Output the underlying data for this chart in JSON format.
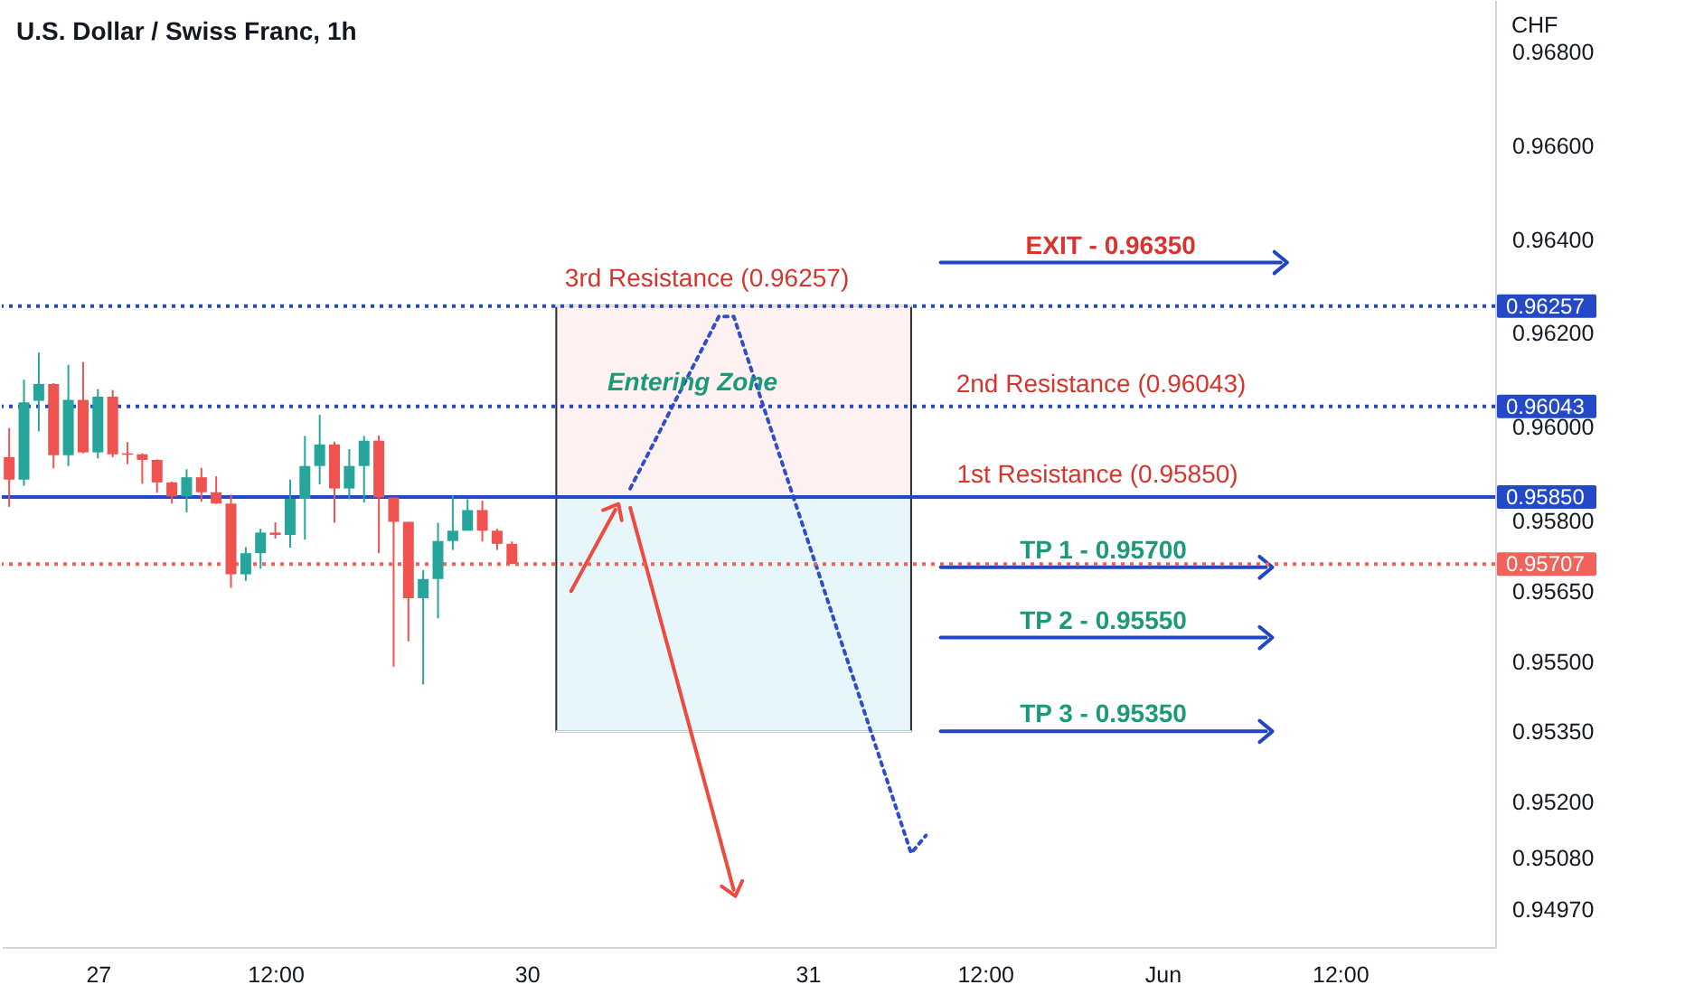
{
  "chart_data": {
    "type": "candlestick",
    "title": "U.S. Dollar / Swiss Franc, 1h",
    "ylabel": "CHF",
    "categories": [
      null,
      null,
      null,
      null,
      null,
      null,
      "27",
      null,
      null,
      null,
      null,
      null,
      null,
      null,
      null,
      null,
      null,
      null,
      "12:00",
      null,
      null,
      null,
      null,
      null,
      null,
      null,
      null,
      null,
      null,
      null,
      null,
      null,
      null,
      null,
      null,
      "30",
      null,
      null,
      null,
      null,
      null,
      null,
      null,
      null,
      null,
      null,
      null,
      null,
      null,
      null,
      null,
      null,
      null,
      null,
      "31",
      null,
      null,
      null,
      null,
      null,
      null,
      null,
      null,
      null,
      null,
      null,
      "12:00",
      null,
      null,
      null,
      null,
      null,
      null,
      null,
      null,
      null,
      null,
      null,
      "Jun",
      null,
      null,
      null,
      null,
      null,
      null,
      null,
      null,
      null,
      null,
      null,
      "12:00",
      null,
      null,
      null,
      null,
      null,
      null,
      null,
      null,
      null,
      null
    ],
    "ohlc": [
      [
        0.95935,
        0.95997,
        0.95829,
        0.95887
      ],
      [
        0.95887,
        0.961,
        0.95874,
        0.96052
      ],
      [
        0.96055,
        0.96158,
        0.9599,
        0.96091
      ],
      [
        0.96091,
        0.96093,
        0.95911,
        0.95939
      ],
      [
        0.95939,
        0.96132,
        0.95916,
        0.96057
      ],
      [
        0.96057,
        0.96138,
        0.95943,
        0.95945
      ],
      [
        0.95945,
        0.9608,
        0.95932,
        0.96064
      ],
      [
        0.96064,
        0.96078,
        0.95935,
        0.95941
      ],
      [
        0.95943,
        0.95967,
        0.9592,
        0.9594
      ],
      [
        0.95941,
        0.95943,
        0.95878,
        0.95929
      ],
      [
        0.95929,
        0.9593,
        0.95859,
        0.95881
      ],
      [
        0.95881,
        0.95883,
        0.95836,
        0.95851
      ],
      [
        0.95851,
        0.95909,
        0.95817,
        0.95892
      ],
      [
        0.95892,
        0.95912,
        0.9584,
        0.9586
      ],
      [
        0.9586,
        0.95894,
        0.95835,
        0.95836
      ],
      [
        0.95836,
        0.95855,
        0.95656,
        0.95685
      ],
      [
        0.95685,
        0.95743,
        0.95671,
        0.9573
      ],
      [
        0.9573,
        0.95782,
        0.95697,
        0.95774
      ],
      [
        0.95774,
        0.95796,
        0.95761,
        0.95769
      ],
      [
        0.95769,
        0.95887,
        0.95742,
        0.95846
      ],
      [
        0.95846,
        0.9598,
        0.95759,
        0.95916
      ],
      [
        0.95916,
        0.96025,
        0.95877,
        0.95962
      ],
      [
        0.95962,
        0.95968,
        0.95795,
        0.95868
      ],
      [
        0.95868,
        0.95952,
        0.95845,
        0.95916
      ],
      [
        0.95916,
        0.9598,
        0.95838,
        0.9597
      ],
      [
        0.9597,
        0.95981,
        0.9573,
        0.95849
      ],
      [
        0.95849,
        0.95849,
        0.95488,
        0.95797
      ],
      [
        0.95797,
        0.95797,
        0.95542,
        0.95634
      ],
      [
        0.95634,
        0.95694,
        0.9545,
        0.95675
      ],
      [
        0.95675,
        0.95795,
        0.95591,
        0.95756
      ],
      [
        0.95756,
        0.95854,
        0.95737,
        0.95778
      ],
      [
        0.95778,
        0.95845,
        0.95778,
        0.95822
      ],
      [
        0.95822,
        0.95842,
        0.95755,
        0.95778
      ],
      [
        0.95778,
        0.95782,
        0.95737,
        0.9575
      ],
      [
        0.9575,
        0.95755,
        0.95707,
        0.95707
      ],
      null,
      null,
      null,
      null,
      null,
      null,
      null,
      null,
      null,
      null,
      null,
      null,
      null,
      null,
      null,
      null,
      null,
      null,
      null,
      null,
      null,
      null,
      null,
      null,
      null,
      null,
      null,
      null,
      null,
      null,
      null,
      null,
      null,
      null,
      null,
      null,
      null,
      null,
      null,
      null,
      null,
      null,
      null,
      null,
      null,
      null,
      null,
      null,
      null,
      null,
      null,
      null,
      null,
      null,
      null,
      null,
      null,
      null,
      null,
      null,
      null,
      null,
      null,
      null,
      null,
      null
    ],
    "colors": [
      "#ef5350",
      "#26a69a",
      "#26a69a",
      "#ef5350",
      "#26a69a",
      "#ef5350",
      "#26a69a",
      "#ef5350",
      "#ef5350",
      "#ef5350",
      "#ef5350",
      "#ef5350",
      "#26a69a",
      "#ef5350",
      "#ef5350",
      "#ef5350",
      "#26a69a",
      "#26a69a",
      "#ef5350",
      "#26a69a",
      "#26a69a",
      "#26a69a",
      "#ef5350",
      "#26a69a",
      "#26a69a",
      "#ef5350",
      "#ef5350",
      "#ef5350",
      "#26a69a",
      "#26a69a",
      "#26a69a",
      "#26a69a",
      "#ef5350",
      "#ef5350",
      "#ef5350",
      null,
      null,
      null,
      null,
      null,
      null,
      null,
      null,
      null,
      null,
      null,
      null,
      null,
      null,
      null,
      null,
      null,
      null,
      null,
      null,
      null,
      null,
      null,
      null,
      null,
      null,
      null,
      null,
      null,
      null,
      null,
      null,
      null,
      null,
      null,
      null,
      null,
      null,
      null,
      null,
      null,
      null,
      null,
      null,
      null,
      null,
      null,
      null,
      null,
      null,
      null,
      null,
      null,
      null,
      null,
      null,
      null,
      null,
      null,
      null,
      null,
      null,
      null,
      null,
      null,
      null
    ],
    "ylim": [
      0.9489,
      0.9691
    ],
    "yticks": [
      {
        "value": 0.968,
        "label": "0.96800"
      },
      {
        "value": 0.966,
        "label": "0.96600"
      },
      {
        "value": 0.964,
        "label": "0.96400"
      },
      {
        "value": 0.962,
        "label": "0.96200"
      },
      {
        "value": 0.96,
        "label": "0.96000"
      },
      {
        "value": 0.958,
        "label": "0.95800"
      },
      {
        "value": 0.9565,
        "label": "0.95650"
      },
      {
        "value": 0.955,
        "label": "0.95500"
      },
      {
        "value": 0.9535,
        "label": "0.95350"
      },
      {
        "value": 0.952,
        "label": "0.95200"
      },
      {
        "value": 0.9508,
        "label": "0.95080"
      },
      {
        "value": 0.9497,
        "label": "0.94970"
      }
    ],
    "ref_lines": [
      {
        "axis": "y",
        "value": 0.96257,
        "label": "0.96257",
        "color": "#2449c8",
        "line_style": "dotted"
      },
      {
        "axis": "y",
        "value": 0.96043,
        "label": "0.96043",
        "color": "#2449c8",
        "line_style": "dotted"
      },
      {
        "axis": "y",
        "value": 0.9585,
        "label": "0.95850",
        "color": "#2449c8",
        "line_style": "solid"
      },
      {
        "axis": "y",
        "value": 0.95707,
        "label": "0.95707",
        "color": "#f0625a",
        "line_style": "dotted"
      }
    ],
    "series": [
      {
        "type": "line",
        "color": "#fdf1f1",
        "values": [
          null,
          null,
          null,
          null,
          null,
          null,
          null,
          null,
          null,
          null,
          null,
          null,
          null,
          null,
          null,
          null,
          null,
          null,
          null,
          null,
          null,
          null,
          null,
          null,
          null,
          null,
          null,
          null,
          null,
          null,
          null,
          null,
          null,
          null,
          null,
          null,
          null,
          0.96257,
          0.96257,
          0.96257,
          0.96257,
          0.96257,
          0.96257,
          0.96257,
          0.96257,
          0.96257,
          0.96257,
          0.96257,
          0.96257,
          0.96257,
          0.96257,
          0.96257,
          0.96257,
          0.96257,
          0.96257,
          0.96257,
          0.96257,
          0.96257,
          0.96257,
          0.96257,
          0.96257,
          0.96257,
          null,
          null,
          null,
          null,
          null,
          null,
          null,
          null,
          null,
          null,
          null,
          null,
          null,
          null,
          null,
          null,
          null,
          null,
          null,
          null,
          null,
          null,
          null,
          null,
          null,
          null,
          null,
          null,
          null,
          null,
          null,
          null,
          null,
          null,
          null,
          null,
          null,
          null,
          null
        ],
        "upper": [
          null,
          null,
          null,
          null,
          null,
          null,
          null,
          null,
          null,
          null,
          null,
          null,
          null,
          null,
          null,
          null,
          null,
          null,
          null,
          null,
          null,
          null,
          null,
          null,
          null,
          null,
          null,
          null,
          null,
          null,
          null,
          null,
          null,
          null,
          null,
          null,
          null,
          0.96257,
          0.96257,
          0.96257,
          0.96257,
          0.96257,
          0.96257,
          0.96257,
          0.96257,
          0.96257,
          0.96257,
          0.96257,
          0.96257,
          0.96257,
          0.96257,
          0.96257,
          0.96257,
          0.96257,
          0.96257,
          0.96257,
          0.96257,
          0.96257,
          0.96257,
          0.96257,
          0.96257,
          0.96257,
          null,
          null,
          null,
          null,
          null,
          null,
          null,
          null,
          null,
          null,
          null,
          null,
          null,
          null,
          null,
          null,
          null,
          null,
          null,
          null,
          null,
          null,
          null,
          null,
          null,
          null,
          null,
          null,
          null,
          null,
          null,
          null,
          null,
          null,
          null,
          null,
          null,
          null,
          null
        ],
        "lower": [
          null,
          null,
          null,
          null,
          null,
          null,
          null,
          null,
          null,
          null,
          null,
          null,
          null,
          null,
          null,
          null,
          null,
          null,
          null,
          null,
          null,
          null,
          null,
          null,
          null,
          null,
          null,
          null,
          null,
          null,
          null,
          null,
          null,
          null,
          null,
          null,
          null,
          0.9585,
          0.9585,
          0.9585,
          0.9585,
          0.9585,
          0.9585,
          0.9585,
          0.9585,
          0.9585,
          0.9585,
          0.9585,
          0.9585,
          0.9585,
          0.9585,
          0.9585,
          0.9585,
          0.9585,
          0.9585,
          0.9585,
          0.9585,
          0.9585,
          0.9585,
          0.9585,
          0.9585,
          0.9585,
          null,
          null,
          null,
          null,
          null,
          null,
          null,
          null,
          null,
          null,
          null,
          null,
          null,
          null,
          null,
          null,
          null,
          null,
          null,
          null,
          null,
          null,
          null,
          null,
          null,
          null,
          null,
          null,
          null,
          null,
          null,
          null,
          null,
          null,
          null,
          null,
          null,
          null,
          null
        ]
      },
      {
        "type": "line",
        "color": "#e6f6fa",
        "values": [
          null,
          null,
          null,
          null,
          null,
          null,
          null,
          null,
          null,
          null,
          null,
          null,
          null,
          null,
          null,
          null,
          null,
          null,
          null,
          null,
          null,
          null,
          null,
          null,
          null,
          null,
          null,
          null,
          null,
          null,
          null,
          null,
          null,
          null,
          null,
          null,
          null,
          0.9535,
          0.9535,
          0.9535,
          0.9535,
          0.9535,
          0.9535,
          0.9535,
          0.9535,
          0.9535,
          0.9535,
          0.9535,
          0.9535,
          0.9535,
          0.9535,
          0.9535,
          0.9535,
          0.9535,
          0.9535,
          0.9535,
          0.9535,
          0.9535,
          0.9535,
          0.9535,
          0.9535,
          0.9535,
          null,
          null,
          null,
          null,
          null,
          null,
          null,
          null,
          null,
          null,
          null,
          null,
          null,
          null,
          null,
          null,
          null,
          null,
          null,
          null,
          null,
          null,
          null,
          null,
          null,
          null,
          null,
          null,
          null,
          null,
          null,
          null,
          null,
          null,
          null,
          null,
          null,
          null,
          null
        ],
        "upper": [
          null,
          null,
          null,
          null,
          null,
          null,
          null,
          null,
          null,
          null,
          null,
          null,
          null,
          null,
          null,
          null,
          null,
          null,
          null,
          null,
          null,
          null,
          null,
          null,
          null,
          null,
          null,
          null,
          null,
          null,
          null,
          null,
          null,
          null,
          null,
          null,
          null,
          0.9585,
          0.9585,
          0.9585,
          0.9585,
          0.9585,
          0.9585,
          0.9585,
          0.9585,
          0.9585,
          0.9585,
          0.9585,
          0.9585,
          0.9585,
          0.9585,
          0.9585,
          0.9585,
          0.9585,
          0.9585,
          0.9585,
          0.9585,
          0.9585,
          0.9585,
          0.9585,
          0.9585,
          0.9585,
          null,
          null,
          null,
          null,
          null,
          null,
          null,
          null,
          null,
          null,
          null,
          null,
          null,
          null,
          null,
          null,
          null,
          null,
          null,
          null,
          null,
          null,
          null,
          null,
          null,
          null,
          null,
          null,
          null,
          null,
          null,
          null,
          null,
          null,
          null,
          null,
          null,
          null,
          null
        ],
        "lower": [
          null,
          null,
          null,
          null,
          null,
          null,
          null,
          null,
          null,
          null,
          null,
          null,
          null,
          null,
          null,
          null,
          null,
          null,
          null,
          null,
          null,
          null,
          null,
          null,
          null,
          null,
          null,
          null,
          null,
          null,
          null,
          null,
          null,
          null,
          null,
          null,
          null,
          0.9535,
          0.9535,
          0.9535,
          0.9535,
          0.9535,
          0.9535,
          0.9535,
          0.9535,
          0.9535,
          0.9535,
          0.9535,
          0.9535,
          0.9535,
          0.9535,
          0.9535,
          0.9535,
          0.9535,
          0.9535,
          0.9535,
          0.9535,
          0.9535,
          0.9535,
          0.9535,
          0.9535,
          0.9535,
          null,
          null,
          null,
          null,
          null,
          null,
          null,
          null,
          null,
          null,
          null,
          null,
          null,
          null,
          null,
          null,
          null,
          null,
          null,
          null,
          null,
          null,
          null,
          null,
          null,
          null,
          null,
          null,
          null,
          null,
          null,
          null,
          null,
          null,
          null,
          null,
          null,
          null,
          null
        ]
      },
      {
        "type": "line",
        "color": "#2e4fc9",
        "line_style": "dotted",
        "values": [
          null,
          null,
          null,
          null,
          null,
          null,
          null,
          null,
          null,
          null,
          null,
          null,
          null,
          null,
          null,
          null,
          null,
          null,
          null,
          null,
          null,
          null,
          null,
          null,
          null,
          null,
          null,
          null,
          null,
          null,
          null,
          null,
          null,
          null,
          null,
          null,
          null,
          null,
          null,
          null,
          null,
          null,
          0.95868,
          0.95929,
          0.9599,
          0.96052,
          0.96113,
          0.96174,
          0.96235,
          0.96235,
          0.9614,
          0.96044,
          0.95949,
          0.95853,
          0.95758,
          0.95663,
          0.95567,
          0.95472,
          0.95376,
          0.95281,
          0.95185,
          0.9509,
          0.95128,
          null,
          null,
          null,
          null,
          null,
          null,
          null,
          null,
          null,
          null,
          null,
          null,
          null,
          null,
          null,
          null,
          null,
          null,
          null,
          null,
          null,
          null,
          null,
          null,
          null,
          null,
          null,
          null,
          null,
          null,
          null,
          null,
          null,
          null,
          null,
          null,
          null,
          null
        ]
      },
      {
        "type": "line",
        "color": "#f0493e",
        "line_style": "solid",
        "values": [
          null,
          null,
          null,
          null,
          null,
          null,
          null,
          null,
          null,
          null,
          null,
          null,
          null,
          null,
          null,
          null,
          null,
          null,
          null,
          null,
          null,
          null,
          null,
          null,
          null,
          null,
          null,
          null,
          null,
          null,
          null,
          null,
          null,
          null,
          null,
          null,
          null,
          null,
          0.95649,
          0.95707,
          0.95765,
          0.95823,
          null,
          null,
          null,
          null,
          null,
          null,
          null,
          null,
          null,
          null,
          null,
          null,
          null,
          null,
          null,
          null,
          null,
          null,
          null,
          null,
          null,
          null,
          null,
          null,
          null,
          null,
          null,
          null,
          null,
          null,
          null,
          null,
          null,
          null,
          null,
          null,
          null,
          null,
          null,
          null,
          null,
          null,
          null,
          null,
          null,
          null,
          null,
          null,
          null,
          null,
          null,
          null,
          null,
          null,
          null,
          null,
          null,
          null,
          null
        ]
      },
      {
        "type": "line",
        "color": "#f0493e",
        "line_style": "solid",
        "values": [
          null,
          null,
          null,
          null,
          null,
          null,
          null,
          null,
          null,
          null,
          null,
          null,
          null,
          null,
          null,
          null,
          null,
          null,
          null,
          null,
          null,
          null,
          null,
          null,
          null,
          null,
          null,
          null,
          null,
          null,
          null,
          null,
          null,
          null,
          null,
          null,
          null,
          null,
          null,
          null,
          null,
          null,
          0.95827,
          0.95711,
          0.95594,
          0.95478,
          0.95361,
          0.95245,
          0.95129,
          0.95012,
          null,
          null,
          null,
          null,
          null,
          null,
          null,
          null,
          null,
          null,
          null,
          null,
          null,
          null,
          null,
          null,
          null,
          null,
          null,
          null,
          null,
          null,
          null,
          null,
          null,
          null,
          null,
          null,
          null,
          null,
          null,
          null,
          null,
          null,
          null,
          null,
          null,
          null,
          null,
          null,
          null,
          null,
          null,
          null,
          null,
          null,
          null,
          null,
          null,
          null,
          null
        ]
      },
      {
        "type": "line",
        "name": "EXIT - 0.96350",
        "color": "#1f47c4",
        "line_style": "solid",
        "values": [
          null,
          null,
          null,
          null,
          null,
          null,
          null,
          null,
          null,
          null,
          null,
          null,
          null,
          null,
          null,
          null,
          null,
          null,
          null,
          null,
          null,
          null,
          null,
          null,
          null,
          null,
          null,
          null,
          null,
          null,
          null,
          null,
          null,
          null,
          null,
          null,
          null,
          null,
          null,
          null,
          null,
          null,
          null,
          null,
          null,
          null,
          null,
          null,
          null,
          null,
          null,
          null,
          null,
          null,
          null,
          null,
          null,
          null,
          null,
          null,
          null,
          null,
          null,
          0.9635,
          0.9635,
          0.9635,
          0.9635,
          0.9635,
          0.9635,
          0.9635,
          0.9635,
          0.9635,
          0.9635,
          0.9635,
          0.9635,
          0.9635,
          0.9635,
          0.9635,
          0.9635,
          0.9635,
          0.9635,
          0.9635,
          0.9635,
          0.9635,
          0.9635,
          0.9635,
          0.9635,
          null,
          null,
          null,
          null,
          null,
          null,
          null,
          null,
          null,
          null,
          null,
          null,
          null,
          null
        ]
      },
      {
        "type": "line",
        "name": "TP 1 - 0.95700",
        "color": "#1f47c4",
        "line_style": "solid",
        "values": [
          null,
          null,
          null,
          null,
          null,
          null,
          null,
          null,
          null,
          null,
          null,
          null,
          null,
          null,
          null,
          null,
          null,
          null,
          null,
          null,
          null,
          null,
          null,
          null,
          null,
          null,
          null,
          null,
          null,
          null,
          null,
          null,
          null,
          null,
          null,
          null,
          null,
          null,
          null,
          null,
          null,
          null,
          null,
          null,
          null,
          null,
          null,
          null,
          null,
          null,
          null,
          null,
          null,
          null,
          null,
          null,
          null,
          null,
          null,
          null,
          null,
          null,
          null,
          0.957,
          0.957,
          0.957,
          0.957,
          0.957,
          0.957,
          0.957,
          0.957,
          0.957,
          0.957,
          0.957,
          0.957,
          0.957,
          0.957,
          0.957,
          0.957,
          0.957,
          0.957,
          0.957,
          0.957,
          0.957,
          0.957,
          0.957,
          null,
          null,
          null,
          null,
          null,
          null,
          null,
          null,
          null,
          null,
          null,
          null,
          null,
          null,
          null
        ]
      },
      {
        "type": "line",
        "name": "TP 2 - 0.95550",
        "color": "#1f47c4",
        "line_style": "solid",
        "values": [
          null,
          null,
          null,
          null,
          null,
          null,
          null,
          null,
          null,
          null,
          null,
          null,
          null,
          null,
          null,
          null,
          null,
          null,
          null,
          null,
          null,
          null,
          null,
          null,
          null,
          null,
          null,
          null,
          null,
          null,
          null,
          null,
          null,
          null,
          null,
          null,
          null,
          null,
          null,
          null,
          null,
          null,
          null,
          null,
          null,
          null,
          null,
          null,
          null,
          null,
          null,
          null,
          null,
          null,
          null,
          null,
          null,
          null,
          null,
          null,
          null,
          null,
          null,
          0.9555,
          0.9555,
          0.9555,
          0.9555,
          0.9555,
          0.9555,
          0.9555,
          0.9555,
          0.9555,
          0.9555,
          0.9555,
          0.9555,
          0.9555,
          0.9555,
          0.9555,
          0.9555,
          0.9555,
          0.9555,
          0.9555,
          0.9555,
          0.9555,
          0.9555,
          0.9555,
          null,
          null,
          null,
          null,
          null,
          null,
          null,
          null,
          null,
          null,
          null,
          null,
          null,
          null,
          null
        ]
      },
      {
        "type": "line",
        "name": "TP 3 - 0.95350",
        "color": "#1f47c4",
        "line_style": "solid",
        "values": [
          null,
          null,
          null,
          null,
          null,
          null,
          null,
          null,
          null,
          null,
          null,
          null,
          null,
          null,
          null,
          null,
          null,
          null,
          null,
          null,
          null,
          null,
          null,
          null,
          null,
          null,
          null,
          null,
          null,
          null,
          null,
          null,
          null,
          null,
          null,
          null,
          null,
          null,
          null,
          null,
          null,
          null,
          null,
          null,
          null,
          null,
          null,
          null,
          null,
          null,
          null,
          null,
          null,
          null,
          null,
          null,
          null,
          null,
          null,
          null,
          null,
          null,
          null,
          0.9535,
          0.9535,
          0.9535,
          0.9535,
          0.9535,
          0.9535,
          0.9535,
          0.9535,
          0.9535,
          0.9535,
          0.9535,
          0.9535,
          0.9535,
          0.9535,
          0.9535,
          0.9535,
          0.9535,
          0.9535,
          0.9535,
          0.9535,
          0.9535,
          0.9535,
          0.9535,
          null,
          null,
          null,
          null,
          null,
          null,
          null,
          null,
          null,
          null,
          null,
          null,
          null,
          null,
          null
        ]
      }
    ],
    "annotations": [
      {
        "text": "3rd Resistance (0.96257)",
        "y": 0.96257
      },
      {
        "text": "2nd Resistance (0.96043)",
        "y": 0.96043
      },
      {
        "text": "1st Resistance (0.95850)",
        "y": 0.9585
      },
      "Entering Zone"
    ]
  }
}
